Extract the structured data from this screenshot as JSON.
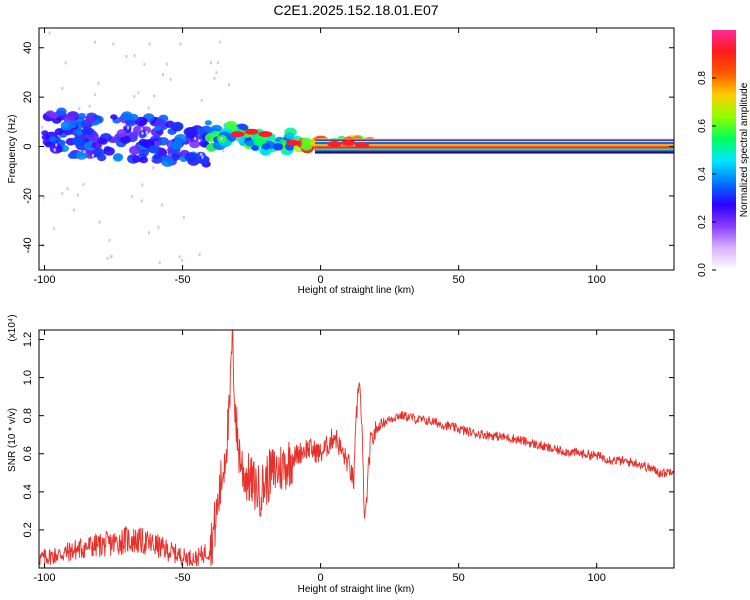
{
  "figure": {
    "title": "C2E1.2025.152.18.01.E07"
  },
  "colors": {
    "snr_line": "#e8302a",
    "frame": "#000000",
    "background": "#ffffff"
  },
  "colorbar": {
    "label": "Normalized spectral amplitude",
    "ticks": [
      "0.0",
      "0.2",
      "0.4",
      "0.6",
      "0.8"
    ],
    "tick_values": [
      0.0,
      0.2,
      0.4,
      0.6,
      0.8
    ],
    "range": [
      0,
      1
    ],
    "colormap": [
      "#ffffff",
      "#d9b3ff",
      "#8a3cff",
      "#2a00ff",
      "#0077ff",
      "#00e5ff",
      "#00ff60",
      "#8cff00",
      "#ffd000",
      "#ff5a00",
      "#ff1a1a",
      "#ff2a9a"
    ]
  },
  "chart_data": [
    {
      "type": "heatmap",
      "title": "C2E1.2025.152.18.01.E07",
      "xlabel": "Height of straight line (km)",
      "ylabel": "Frequency (Hz)",
      "xlim": [
        -102,
        128
      ],
      "ylim": [
        -50,
        48
      ],
      "xticks": [
        -100,
        -50,
        0,
        50,
        100
      ],
      "yticks": [
        -40,
        -20,
        0,
        20,
        40
      ],
      "grid": false,
      "color_scale": "Normalized spectral amplitude",
      "features": [
        {
          "x_range": [
            -100,
            -40
          ],
          "freq_center": 3,
          "freq_spread": 9,
          "amplitude": 0.35
        },
        {
          "x_range": [
            -40,
            -10
          ],
          "freq_center": 4,
          "freq_spread": 4,
          "amplitude": 0.55
        },
        {
          "x_range": [
            -10,
            18
          ],
          "freq_center": 1,
          "freq_spread": 2,
          "amplitude": 0.85
        },
        {
          "x_range": [
            18,
            128
          ],
          "freq_center": 0,
          "freq_spread": 1,
          "amplitude": 0.95
        }
      ]
    },
    {
      "type": "line",
      "xlabel": "Height of straight line (km)",
      "ylabel": "SNR (10 * v/v)",
      "y_multiplier": "(x10⁴)",
      "xlim": [
        -102,
        128
      ],
      "ylim": [
        0,
        1.25
      ],
      "xticks": [
        -100,
        -50,
        0,
        50,
        100
      ],
      "yticks": [
        0.2,
        0.4,
        0.6,
        0.8,
        1.0,
        1.2
      ],
      "grid": false,
      "series": [
        {
          "x": [
            -102,
            -95,
            -90,
            -85,
            -80,
            -75,
            -70,
            -65,
            -60,
            -55,
            -50,
            -45,
            -40,
            -38,
            -35,
            -33,
            -32,
            -31,
            -30,
            -28,
            -25,
            -22,
            -20,
            -18,
            -15,
            -12,
            -10,
            -8,
            -5,
            -3,
            0,
            3,
            5,
            8,
            10,
            12,
            13,
            14,
            15,
            16,
            18,
            20,
            22,
            25,
            28,
            30,
            33,
            35,
            40,
            45,
            50,
            55,
            60,
            65,
            70,
            75,
            80,
            85,
            90,
            95,
            100,
            105,
            110,
            115,
            120,
            123,
            125,
            128
          ],
          "y": [
            0.05,
            0.07,
            0.09,
            0.11,
            0.12,
            0.13,
            0.15,
            0.14,
            0.12,
            0.09,
            0.06,
            0.05,
            0.1,
            0.25,
            0.55,
            0.8,
            1.25,
            0.85,
            0.65,
            0.5,
            0.45,
            0.4,
            0.45,
            0.5,
            0.52,
            0.55,
            0.58,
            0.6,
            0.63,
            0.62,
            0.6,
            0.65,
            0.7,
            0.6,
            0.55,
            0.45,
            0.8,
            1.02,
            0.7,
            0.22,
            0.65,
            0.72,
            0.76,
            0.78,
            0.8,
            0.8,
            0.79,
            0.78,
            0.77,
            0.75,
            0.73,
            0.71,
            0.7,
            0.69,
            0.68,
            0.66,
            0.64,
            0.62,
            0.61,
            0.6,
            0.59,
            0.57,
            0.56,
            0.55,
            0.52,
            0.5,
            0.5,
            0.52
          ]
        }
      ]
    }
  ]
}
